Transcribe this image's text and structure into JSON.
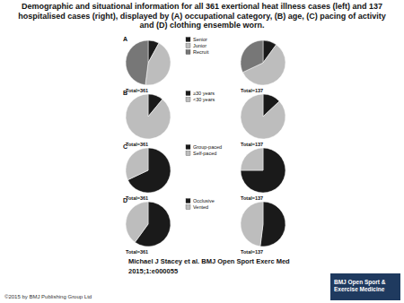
{
  "title": "Demographic and situational information for all 361 exertional heat illness cases (left) and 137 hospitalised cases (right), displayed by (A) occupational category, (B) age, (C) pacing of activity and (D) clothing ensemble worn.",
  "citation": "Michael J Stacey et al. BMJ Open Sport Exerc Med 2015;1:e000055",
  "copyright": "©2015 by BMJ Publishing Group Ltd",
  "logo": "BMJ Open Sport & Exercise Medicine",
  "chart_data": [
    {
      "type": "pie",
      "panel": "A",
      "legend": "right",
      "categories": [
        "Senior",
        "Junior",
        "Recruit"
      ],
      "colors": [
        "#1a1a1a",
        "#bdbdbd",
        "#777777"
      ],
      "series": [
        {
          "name": "Total=361",
          "values": [
            8,
            44,
            48
          ]
        },
        {
          "name": "Total=137",
          "values": [
            10,
            58,
            32
          ]
        }
      ]
    },
    {
      "type": "pie",
      "panel": "B",
      "legend": "right",
      "categories": [
        "≥30 years",
        "<30 years"
      ],
      "colors": [
        "#1a1a1a",
        "#bdbdbd"
      ],
      "series": [
        {
          "name": "Total=361",
          "values": [
            11,
            89
          ]
        },
        {
          "name": "Total=137",
          "values": [
            13,
            87
          ]
        }
      ]
    },
    {
      "type": "pie",
      "panel": "C",
      "legend": "right",
      "categories": [
        "Group-paced",
        "Self-paced"
      ],
      "colors": [
        "#1a1a1a",
        "#bdbdbd"
      ],
      "series": [
        {
          "name": "Total=361",
          "values": [
            68,
            32
          ]
        },
        {
          "name": "Total=137",
          "values": [
            75,
            25
          ]
        }
      ]
    },
    {
      "type": "pie",
      "panel": "D",
      "legend": "right",
      "categories": [
        "Occlusive",
        "Vented"
      ],
      "colors": [
        "#1a1a1a",
        "#bdbdbd"
      ],
      "series": [
        {
          "name": "Total=361",
          "values": [
            60,
            40
          ]
        },
        {
          "name": "Total=137",
          "values": [
            52,
            48
          ]
        }
      ]
    }
  ]
}
